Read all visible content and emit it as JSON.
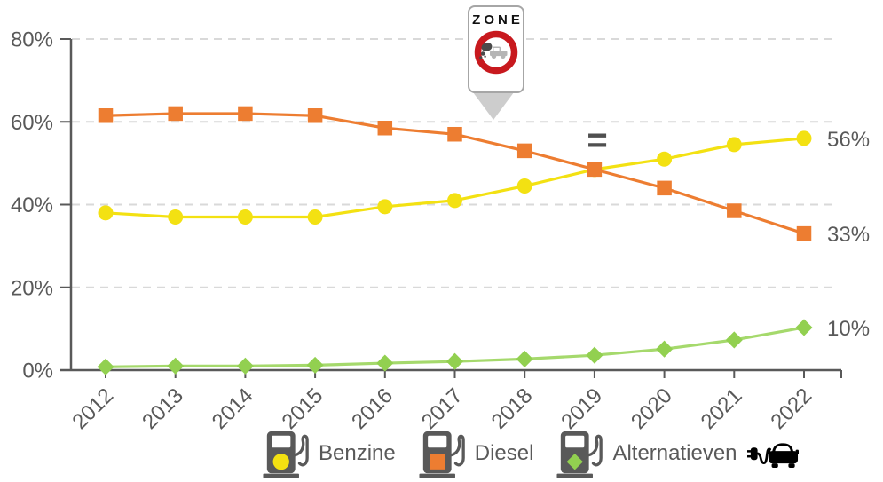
{
  "chart_data": {
    "type": "line",
    "title": "",
    "xlabel": "",
    "ylabel": "",
    "categories": [
      "2012",
      "2013",
      "2014",
      "2015",
      "2016",
      "2017",
      "2018",
      "2019",
      "2020",
      "2021",
      "2022"
    ],
    "series": [
      {
        "name": "Benzine",
        "marker": "circle",
        "color": "#F3E112",
        "end_label": "56%",
        "values": [
          38,
          37,
          37,
          37,
          39.5,
          41,
          44.5,
          48.5,
          51,
          54.5,
          56
        ]
      },
      {
        "name": "Diesel",
        "marker": "square",
        "color": "#ED7D31",
        "end_label": "33%",
        "values": [
          61.5,
          62,
          62,
          61.5,
          58.5,
          57,
          53,
          48.5,
          44,
          38.5,
          33
        ]
      },
      {
        "name": "Alternatieven",
        "marker": "diamond",
        "color": "#92D050",
        "line_color": "#A5D96C",
        "end_label": "10%",
        "ev_icon": true,
        "values": [
          0.8,
          1,
          1,
          1.2,
          1.7,
          2.1,
          2.7,
          3.6,
          5.1,
          7.3,
          10.3
        ]
      }
    ],
    "ylim": [
      0,
      80
    ],
    "yticks": [
      0,
      20,
      40,
      60,
      80
    ],
    "ytick_suffix": "%",
    "grid": "dashed-horizontal",
    "legend_position": "bottom",
    "style": {
      "axis_color": "#595959",
      "label_color": "#595959",
      "grid_color": "#D9D9D9",
      "background": "#FFFFFF"
    }
  },
  "annotations": {
    "zone_sign_text": "ZONE",
    "equals_text": "=",
    "zone_sign_colors": {
      "ring_red": "#C8191E",
      "sign_border": "#A6A6A6",
      "pointer_gray": "#CDCDCD"
    }
  }
}
